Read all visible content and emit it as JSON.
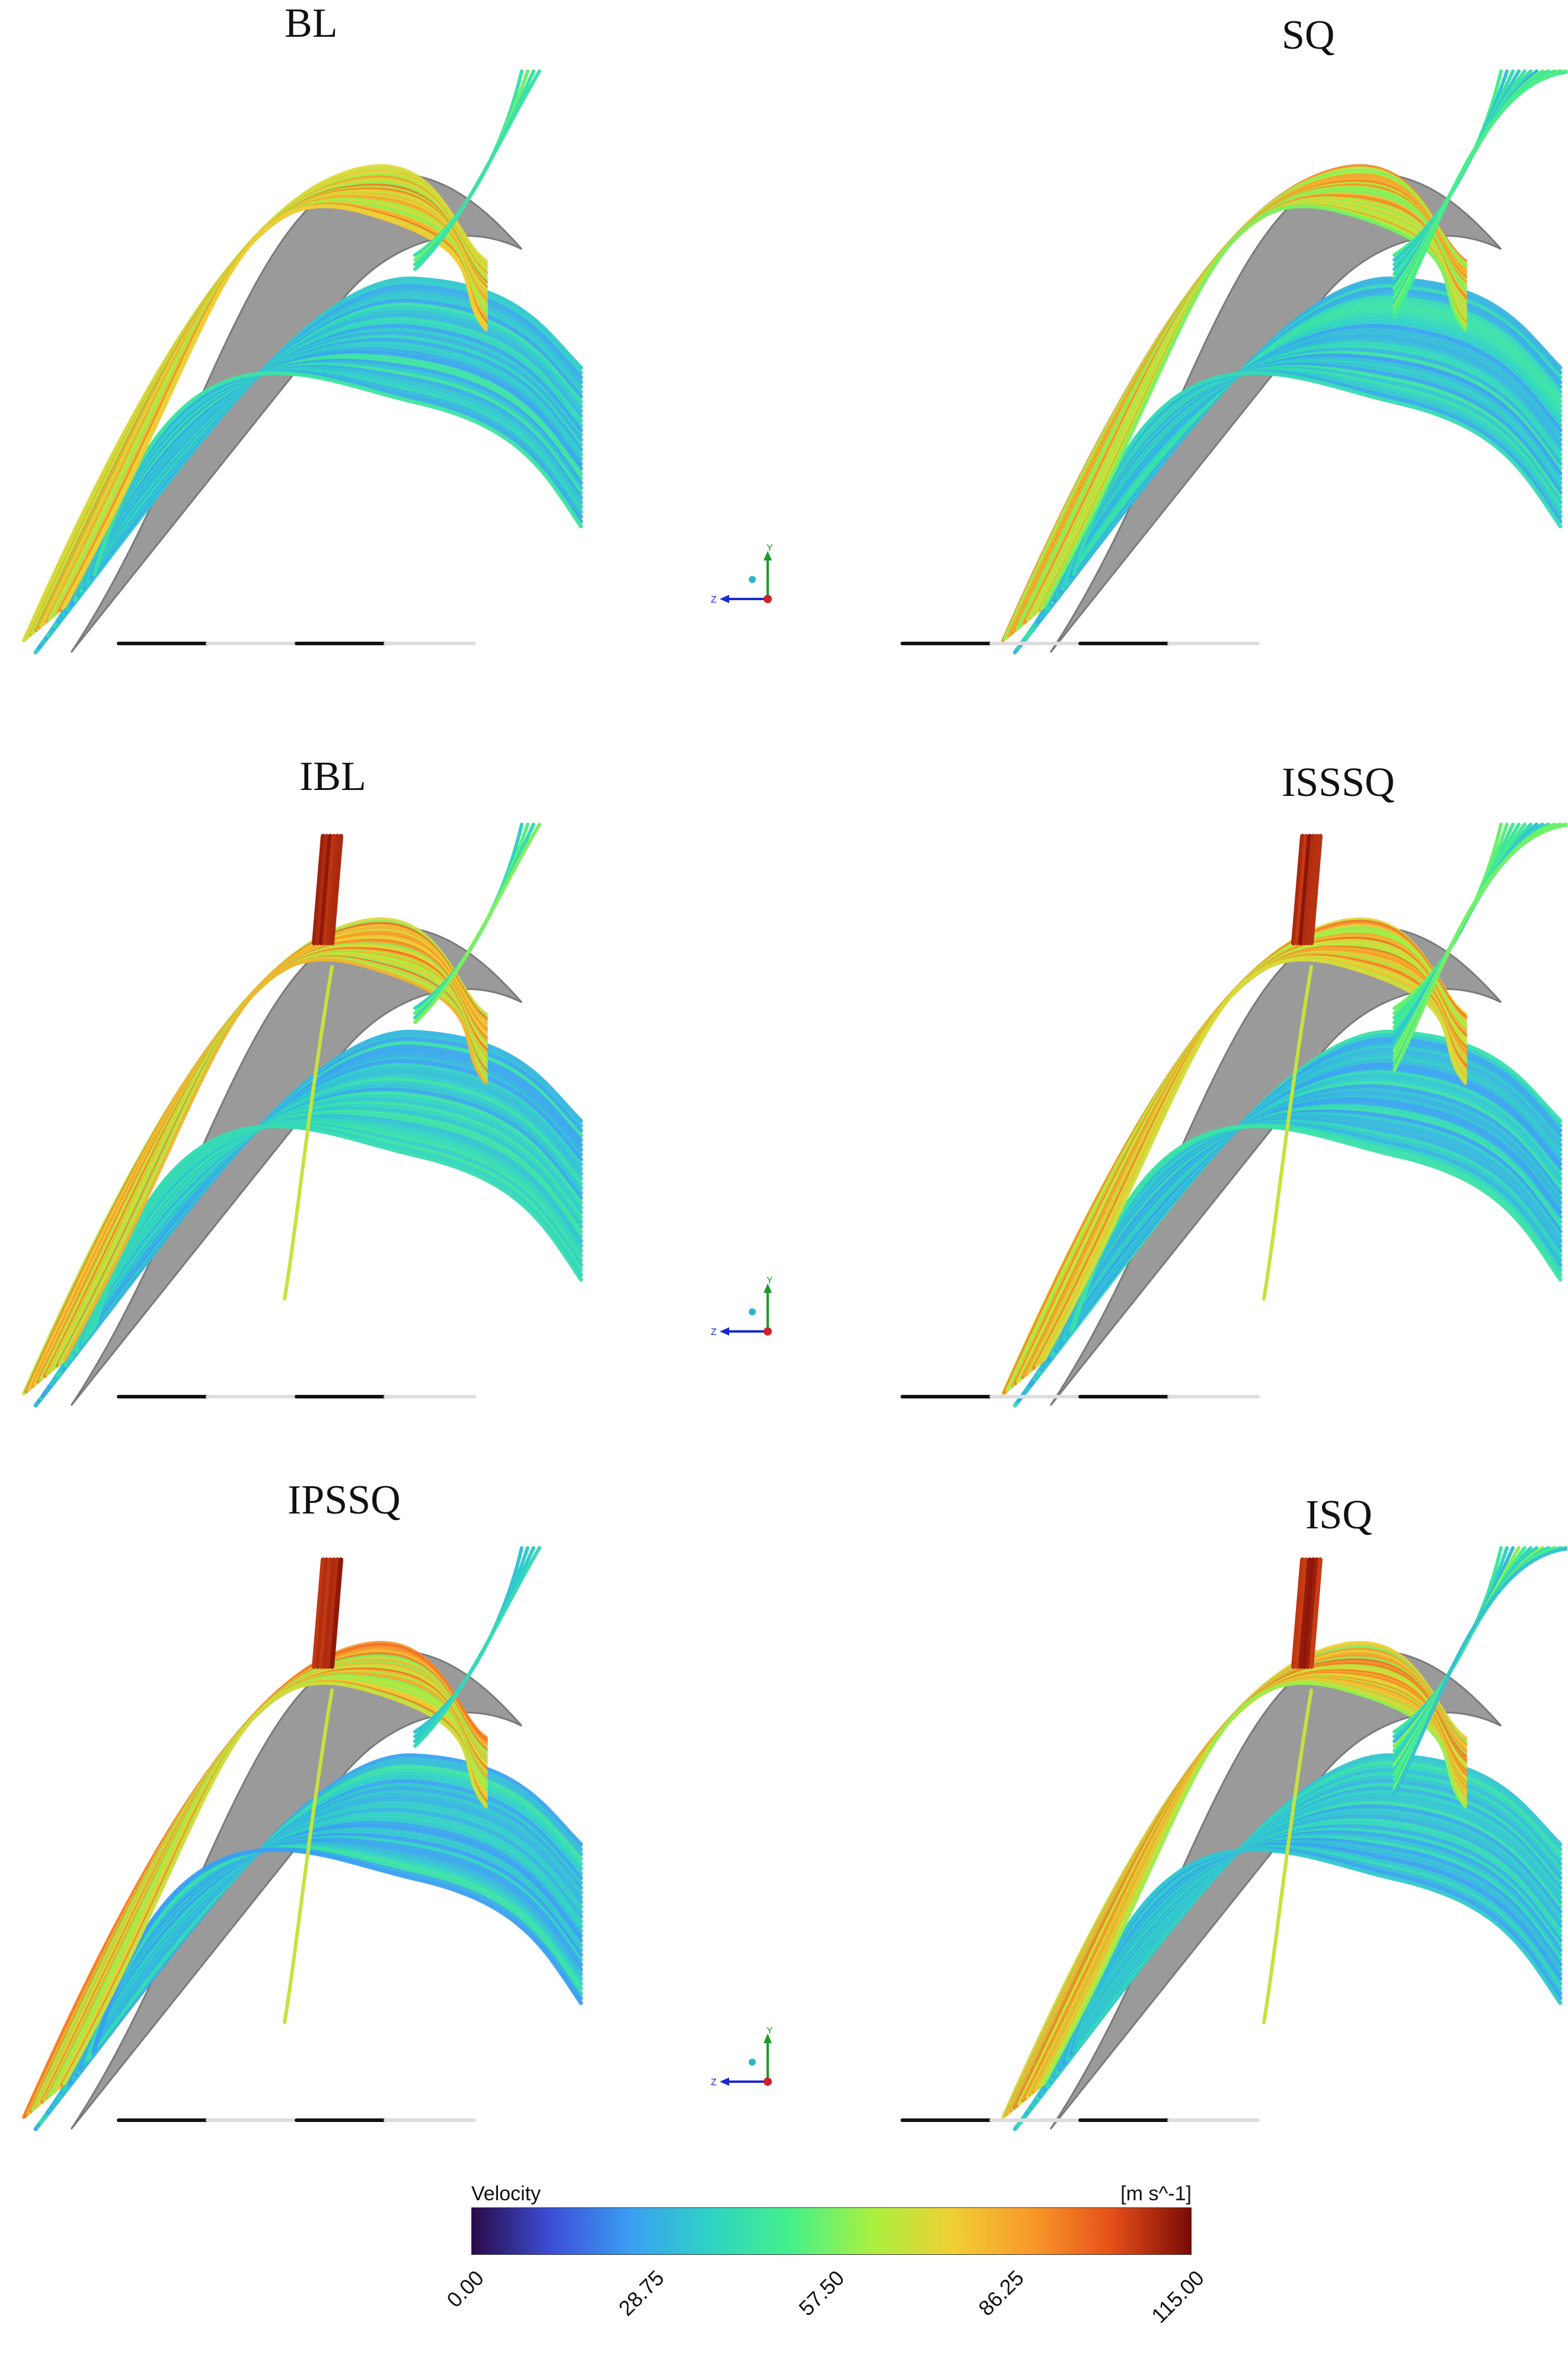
{
  "panels": [
    {
      "id": "bl",
      "title": "BL"
    },
    {
      "id": "sq",
      "title": "SQ"
    },
    {
      "id": "ibl",
      "title": "IBL"
    },
    {
      "id": "isssq",
      "title": "ISSSQ"
    },
    {
      "id": "ipssq",
      "title": "IPSSQ"
    },
    {
      "id": "isq",
      "title": "ISQ"
    }
  ],
  "axis_triad": {
    "y_label": "Y",
    "z_label": "Z"
  },
  "colorbar": {
    "title": "Velocity",
    "units": "[m s^-1]",
    "ticks": [
      "0.00",
      "28.75",
      "57.50",
      "86.25",
      "115.00"
    ],
    "range": [
      0,
      115
    ],
    "colors": [
      "#2a0a4a",
      "#3c4fd8",
      "#3aa0f2",
      "#2fd3c4",
      "#46f08a",
      "#a8f040",
      "#f0d035",
      "#f99a2a",
      "#e6501a",
      "#7a0a05"
    ]
  }
}
